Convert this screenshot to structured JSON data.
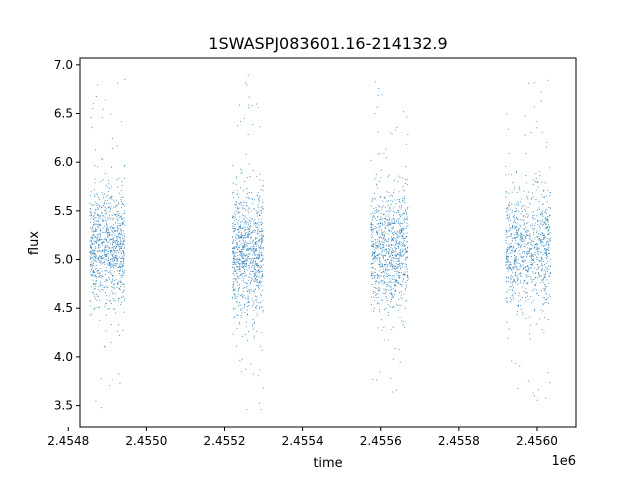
{
  "chart_data": {
    "type": "scatter",
    "title": "1SWASPJ083601.16-214132.9",
    "xlabel": "time",
    "ylabel": "flux",
    "x_offset_label": "1e6",
    "xlim": [
      2454830,
      2456100
    ],
    "ylim": [
      3.28,
      7.07
    ],
    "x_ticks": [
      2454800,
      2455000,
      2455200,
      2455400,
      2455600,
      2455800,
      2456000
    ],
    "x_tick_labels": [
      "2.4548",
      "2.4550",
      "2.4552",
      "2.4554",
      "2.4556",
      "2.4558",
      "2.4560"
    ],
    "y_ticks": [
      3.5,
      4.0,
      4.5,
      5.0,
      5.5,
      6.0,
      6.5,
      7.0
    ],
    "y_tick_labels": [
      "3.5",
      "4.0",
      "4.5",
      "5.0",
      "5.5",
      "6.0",
      "6.5",
      "7.0"
    ],
    "grid": false,
    "marker_color": "#1f77b4",
    "series": [
      {
        "observing_seasons": [
          {
            "x_range": [
              2454855,
              2454945
            ],
            "flux_center": 5.12,
            "flux_core_spread": 0.3,
            "flux_min": 3.42,
            "flux_max": 6.9
          },
          {
            "x_range": [
              2455220,
              2455300
            ],
            "flux_center": 5.05,
            "flux_core_spread": 0.32,
            "flux_min": 3.45,
            "flux_max": 6.9
          },
          {
            "x_range": [
              2455575,
              2455670
            ],
            "flux_center": 5.1,
            "flux_core_spread": 0.3,
            "flux_min": 3.6,
            "flux_max": 6.9
          },
          {
            "x_range": [
              2455920,
              2456035
            ],
            "flux_center": 5.12,
            "flux_core_spread": 0.3,
            "flux_min": 3.5,
            "flux_max": 6.85
          }
        ]
      }
    ]
  }
}
